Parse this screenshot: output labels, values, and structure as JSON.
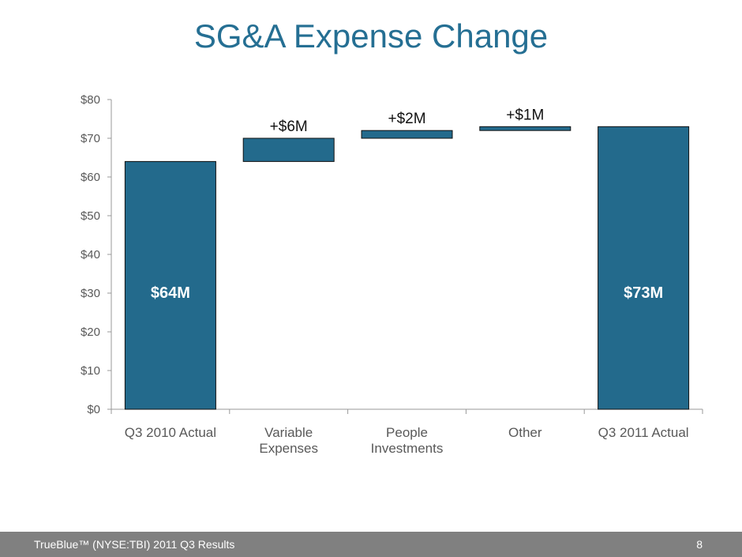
{
  "title": "SG&A Expense Change",
  "footer": {
    "left": "TrueBlue™ (NYSE:TBI)   2011 Q3 Results",
    "page": "8"
  },
  "colors": {
    "bar": "#236a8c",
    "title": "#256f93",
    "footer": "#808080"
  },
  "chart_data": {
    "type": "waterfall",
    "title": "SG&A Expense Change",
    "categories": [
      [
        "Q3 2010 Actual"
      ],
      [
        "Variable",
        "Expenses"
      ],
      [
        "People",
        "Investments"
      ],
      [
        "Other"
      ],
      [
        "Q3 2011 Actual"
      ]
    ],
    "bars": [
      {
        "start": 0,
        "end": 64,
        "label": "$64M",
        "label_pos": "inside"
      },
      {
        "start": 64,
        "end": 70,
        "label": "+$6M",
        "label_pos": "above"
      },
      {
        "start": 70,
        "end": 72,
        "label": "+$2M",
        "label_pos": "above"
      },
      {
        "start": 72,
        "end": 73,
        "label": "+$1M",
        "label_pos": "above"
      },
      {
        "start": 0,
        "end": 73,
        "label": "$73M",
        "label_pos": "inside"
      }
    ],
    "ylim": [
      0,
      80
    ],
    "yticks": [
      0,
      10,
      20,
      30,
      40,
      50,
      60,
      70,
      80
    ],
    "ytick_labels": [
      "$0",
      "$10",
      "$20",
      "$30",
      "$40",
      "$50",
      "$60",
      "$70",
      "$80"
    ],
    "grid": false
  }
}
